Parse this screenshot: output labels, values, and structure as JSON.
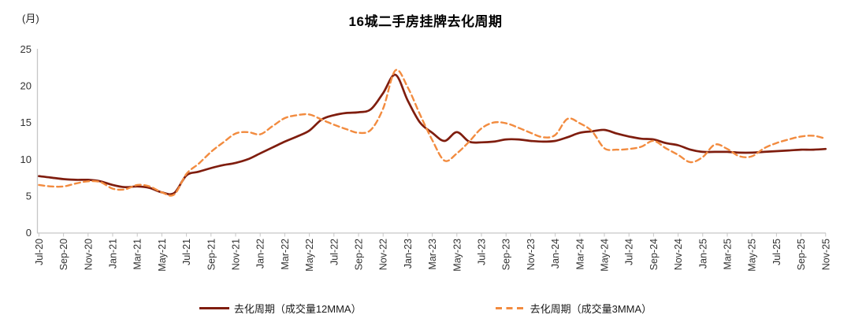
{
  "header": {
    "title": "16城二手房挂牌去化周期",
    "unit_label": "(月)"
  },
  "colors": {
    "series_12mma": "#7f1d0e",
    "series_3mma": "#f28b3f",
    "axis": "#c6c6c6",
    "tick_text": "#333333"
  },
  "chart_data": {
    "type": "line",
    "title": "16城二手房挂牌去化周期",
    "ylabel": "(月)",
    "ylim": [
      0,
      25
    ],
    "yticks": [
      0,
      5,
      10,
      15,
      20,
      25
    ],
    "grid": "off",
    "legend_position": "bottom",
    "x_frequency": "monthly",
    "x_start": "Jul-20",
    "x_end": "Nov-25",
    "x_tick_labels": [
      "Jul-20",
      "Sep-20",
      "Nov-20",
      "Jan-21",
      "Mar-21",
      "May-21",
      "Jul-21",
      "Sep-21",
      "Nov-21",
      "Jan-22",
      "Mar-22",
      "May-22",
      "Jul-22",
      "Sep-22",
      "Nov-22",
      "Jan-23",
      "Mar-23",
      "May-23",
      "Jul-23",
      "Sep-23",
      "Nov-23",
      "Jan-24",
      "Mar-24",
      "May-24",
      "Jul-24",
      "Sep-24",
      "Nov-24",
      "Jan-25",
      "Mar-25",
      "May-25",
      "Jul-25",
      "Sep-25",
      "Nov-25"
    ],
    "series": [
      {
        "name": "去化周期（成交量12MMA）",
        "style": "solid",
        "color": "#7f1d0e",
        "values": [
          7.7,
          7.5,
          7.3,
          7.2,
          7.2,
          7.0,
          6.5,
          6.2,
          6.3,
          6.1,
          5.5,
          5.4,
          7.8,
          8.3,
          8.8,
          9.2,
          9.5,
          10.0,
          10.8,
          11.6,
          12.4,
          13.1,
          13.9,
          15.4,
          16.0,
          16.3,
          16.4,
          16.8,
          19.0,
          21.5,
          18.0,
          15.0,
          13.6,
          12.5,
          13.7,
          12.4,
          12.3,
          12.4,
          12.7,
          12.7,
          12.5,
          12.4,
          12.5,
          13.0,
          13.6,
          13.8,
          14.0,
          13.5,
          13.1,
          12.8,
          12.7,
          12.2,
          11.9,
          11.3,
          11.0,
          11.0,
          11.0,
          10.9,
          10.9,
          11.0,
          11.1,
          11.2,
          11.3,
          11.3,
          11.4
        ]
      },
      {
        "name": "去化周期（成交量3MMA）",
        "style": "dashed",
        "color": "#f28b3f",
        "values": [
          6.5,
          6.3,
          6.3,
          6.7,
          7.0,
          6.9,
          6.0,
          5.9,
          6.5,
          6.3,
          5.5,
          5.2,
          8.0,
          9.4,
          11.0,
          12.3,
          13.5,
          13.7,
          13.4,
          14.5,
          15.6,
          16.0,
          16.1,
          15.4,
          14.7,
          14.1,
          13.6,
          14.0,
          16.9,
          22.1,
          19.8,
          16.1,
          12.6,
          9.8,
          10.8,
          12.4,
          14.2,
          15.0,
          14.9,
          14.3,
          13.6,
          13.0,
          13.3,
          15.5,
          14.9,
          13.8,
          11.5,
          11.3,
          11.4,
          11.7,
          12.5,
          11.5,
          10.6,
          9.6,
          10.3,
          12.0,
          11.4,
          10.4,
          10.4,
          11.5,
          12.2,
          12.7,
          13.1,
          13.2,
          12.8
        ]
      }
    ]
  }
}
